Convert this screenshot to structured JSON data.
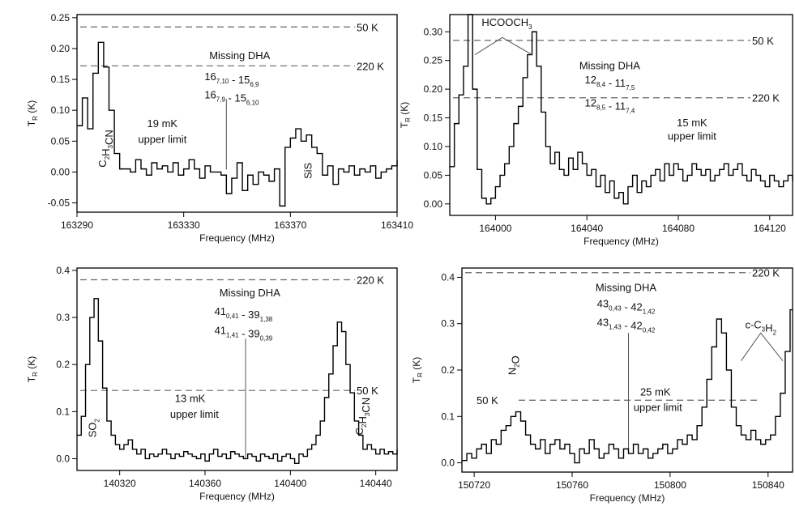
{
  "figure_axis_labels": {
    "x": "Frequency (MHz)",
    "y_prefix": "T",
    "y_sub": "R",
    "y_suffix": " (K)"
  },
  "chart_data": [
    {
      "type": "line",
      "panel": "top-left",
      "xlabel": "Frequency (MHz)",
      "ylabel": "T_R (K)",
      "xlim": [
        163290,
        163410
      ],
      "ylim": [
        -0.065,
        0.255
      ],
      "xticks": [
        163290,
        163330,
        163370,
        163410
      ],
      "yticks": [
        -0.05,
        0.0,
        0.05,
        0.1,
        0.15,
        0.2,
        0.25
      ],
      "ytick_labels": [
        "-0.05",
        "0.00",
        "0.05",
        "0.10",
        "0.15",
        "0.20",
        "0.25"
      ],
      "reference_lines": [
        {
          "label": "50 K",
          "y": 0.235
        },
        {
          "label": "220 K",
          "y": 0.172
        }
      ],
      "annotations": [
        {
          "text": "Missing DHA",
          "x": 163351,
          "y": 0.183
        },
        {
          "parts": [
            [
              "16",
              "7,10"
            ],
            [
              " - 15",
              "6,9"
            ]
          ],
          "x": 163348,
          "y": 0.149
        },
        {
          "parts": [
            [
              "16",
              "7,9"
            ],
            [
              " - 15",
              "6,10"
            ]
          ],
          "x": 163348,
          "y": 0.119
        },
        {
          "text": "19 mK",
          "x": 163322,
          "y": 0.073
        },
        {
          "text": "upper limit",
          "x": 163322,
          "y": 0.047
        },
        {
          "parts": [
            [
              "C",
              "2"
            ],
            [
              "H",
              "3"
            ],
            [
              "CN",
              ""
            ]
          ],
          "x": 163301,
          "y": 0.038,
          "rotate": -90
        },
        {
          "text": "SiS",
          "x": 163378,
          "y": 0.002,
          "rotate": -90
        }
      ],
      "marker_lines": [
        {
          "x": 163346,
          "y_from": 0.118,
          "y_to": 0.004
        }
      ],
      "x": [
        163290,
        163292,
        163294,
        163296,
        163298,
        163300,
        163302,
        163304,
        163306,
        163308,
        163310,
        163312,
        163314,
        163316,
        163318,
        163320,
        163322,
        163324,
        163326,
        163328,
        163330,
        163332,
        163334,
        163336,
        163338,
        163340,
        163342,
        163344,
        163346,
        163348,
        163350,
        163352,
        163354,
        163356,
        163358,
        163360,
        163362,
        163364,
        163366,
        163368,
        163370,
        163372,
        163374,
        163376,
        163378,
        163380,
        163382,
        163384,
        163386,
        163388,
        163390,
        163392,
        163394,
        163396,
        163398,
        163400,
        163402,
        163404,
        163406,
        163408,
        163410
      ],
      "y": [
        0.075,
        0.12,
        0.07,
        0.16,
        0.21,
        0.17,
        0.1,
        0.03,
        0.005,
        0.005,
        0.0,
        0.02,
        0.005,
        -0.005,
        0.015,
        0.005,
        0.01,
        0.0,
        0.015,
        -0.005,
        0.005,
        0.02,
        0.005,
        -0.01,
        0.01,
        0.0,
        0.0,
        -0.005,
        -0.035,
        -0.01,
        0.015,
        -0.03,
        -0.005,
        -0.02,
        0.0,
        -0.005,
        -0.015,
        0.005,
        -0.055,
        0.04,
        0.055,
        0.07,
        0.05,
        0.06,
        0.04,
        0.03,
        -0.005,
        0.01,
        -0.02,
        0.005,
        0.0,
        0.01,
        -0.005,
        0.005,
        0.0,
        0.01,
        -0.01,
        0.0,
        0.005,
        0.01,
        0.02
      ]
    },
    {
      "type": "line",
      "panel": "top-right",
      "xlabel": "Frequency (MHz)",
      "ylabel": "T_R (K)",
      "xlim": [
        163980,
        164130
      ],
      "ylim": [
        -0.02,
        0.33
      ],
      "xticks": [
        164000,
        164040,
        164080,
        164120
      ],
      "yticks": [
        0.0,
        0.05,
        0.1,
        0.15,
        0.2,
        0.25,
        0.3
      ],
      "ytick_labels": [
        "0.00",
        "0.05",
        "0.10",
        "0.15",
        "0.20",
        "0.25",
        "0.30"
      ],
      "reference_lines": [
        {
          "label": "50 K",
          "y": 0.285
        },
        {
          "label": "220 K",
          "y": 0.185
        }
      ],
      "annotations": [
        {
          "parts": [
            [
              "HCOOCH",
              ""
            ],
            [
              "",
              "3"
            ]
          ],
          "x": 164005,
          "y": 0.31
        },
        {
          "text": "Missing DHA",
          "x": 164050,
          "y": 0.235
        },
        {
          "parts": [
            [
              "12",
              "8,4"
            ],
            [
              " - 11",
              "7,5"
            ]
          ],
          "x": 164050,
          "y": 0.21
        },
        {
          "parts": [
            [
              "12",
              "8,5"
            ],
            [
              " - 11",
              "7,4"
            ]
          ],
          "x": 164050,
          "y": 0.17
        },
        {
          "text": "15 mK",
          "x": 164086,
          "y": 0.135
        },
        {
          "text": "upper limit",
          "x": 164086,
          "y": 0.112
        }
      ],
      "marker_lines": [],
      "x": [
        163980,
        163982,
        163984,
        163986,
        163988,
        163990,
        163992,
        163994,
        163996,
        163998,
        164000,
        164002,
        164004,
        164006,
        164008,
        164010,
        164012,
        164014,
        164016,
        164018,
        164020,
        164022,
        164024,
        164026,
        164028,
        164030,
        164032,
        164034,
        164036,
        164038,
        164040,
        164042,
        164044,
        164046,
        164048,
        164050,
        164052,
        164054,
        164056,
        164058,
        164060,
        164062,
        164064,
        164066,
        164068,
        164070,
        164072,
        164074,
        164076,
        164078,
        164080,
        164082,
        164084,
        164086,
        164088,
        164090,
        164092,
        164094,
        164096,
        164098,
        164100,
        164102,
        164104,
        164106,
        164108,
        164110,
        164112,
        164114,
        164116,
        164118,
        164120,
        164122,
        164124,
        164126,
        164128,
        164130
      ],
      "y": [
        0.065,
        0.14,
        0.19,
        0.24,
        0.33,
        0.2,
        0.06,
        0.01,
        0.0,
        0.01,
        0.03,
        0.05,
        0.07,
        0.1,
        0.14,
        0.17,
        0.22,
        0.26,
        0.3,
        0.24,
        0.16,
        0.1,
        0.07,
        0.09,
        0.06,
        0.05,
        0.08,
        0.06,
        0.09,
        0.07,
        0.05,
        0.06,
        0.03,
        0.05,
        0.02,
        0.04,
        0.01,
        0.02,
        0.0,
        0.03,
        0.05,
        0.02,
        0.04,
        0.03,
        0.05,
        0.06,
        0.04,
        0.07,
        0.05,
        0.07,
        0.06,
        0.04,
        0.05,
        0.07,
        0.06,
        0.05,
        0.06,
        0.04,
        0.05,
        0.06,
        0.07,
        0.05,
        0.06,
        0.07,
        0.05,
        0.04,
        0.06,
        0.05,
        0.04,
        0.03,
        0.05,
        0.04,
        0.03,
        0.04,
        0.05,
        0.04
      ]
    },
    {
      "type": "line",
      "panel": "bottom-left",
      "xlabel": "Frequency (MHz)",
      "ylabel": "T_R (K)",
      "xlim": [
        140300,
        140450
      ],
      "ylim": [
        -0.025,
        0.405
      ],
      "xticks": [
        140320,
        140360,
        140400,
        140440
      ],
      "yticks": [
        0.0,
        0.1,
        0.2,
        0.3,
        0.4
      ],
      "ytick_labels": [
        "0.0",
        "0.1",
        "0.2",
        "0.3",
        "0.4"
      ],
      "reference_lines": [
        {
          "label": "220 K",
          "y": 0.38
        },
        {
          "label": "50 K",
          "y": 0.145
        }
      ],
      "annotations": [
        {
          "text": "Missing DHA",
          "x": 140381,
          "y": 0.345
        },
        {
          "parts": [
            [
              "41",
              "0,41"
            ],
            [
              " - 39",
              "1,38"
            ]
          ],
          "x": 140378,
          "y": 0.305
        },
        {
          "parts": [
            [
              "41",
              "1,41"
            ],
            [
              " - 39",
              "0,39"
            ]
          ],
          "x": 140378,
          "y": 0.265
        },
        {
          "text": "13 mK",
          "x": 140353,
          "y": 0.12
        },
        {
          "text": "upper limit",
          "x": 140355,
          "y": 0.087
        },
        {
          "parts": [
            [
              "SO",
              "2"
            ]
          ],
          "x": 140309,
          "y": 0.065,
          "rotate": -90
        },
        {
          "parts": [
            [
              "C",
              "2"
            ],
            [
              "H",
              "3"
            ],
            [
              "CN",
              ""
            ]
          ],
          "x": 140434,
          "y": 0.09,
          "rotate": -90
        }
      ],
      "marker_lines": [
        {
          "x": 140379,
          "y_from": 0.255,
          "y_to": 0.002
        }
      ],
      "x": [
        140300,
        140302,
        140304,
        140306,
        140308,
        140310,
        140312,
        140314,
        140316,
        140318,
        140320,
        140322,
        140324,
        140326,
        140328,
        140330,
        140332,
        140334,
        140336,
        140338,
        140340,
        140342,
        140344,
        140346,
        140348,
        140350,
        140352,
        140354,
        140356,
        140358,
        140360,
        140362,
        140364,
        140366,
        140368,
        140370,
        140372,
        140374,
        140376,
        140378,
        140380,
        140382,
        140384,
        140386,
        140388,
        140390,
        140392,
        140394,
        140396,
        140398,
        140400,
        140402,
        140404,
        140406,
        140408,
        140410,
        140412,
        140414,
        140416,
        140418,
        140420,
        140422,
        140424,
        140426,
        140428,
        140430,
        140432,
        140434,
        140436,
        140438,
        140440,
        140442,
        140444,
        140446,
        140448,
        140450
      ],
      "y": [
        0.05,
        0.09,
        0.2,
        0.3,
        0.34,
        0.25,
        0.15,
        0.08,
        0.05,
        0.03,
        0.02,
        0.03,
        0.04,
        0.02,
        0.01,
        0.02,
        0.0,
        0.01,
        0.005,
        0.01,
        0.02,
        0.01,
        0.0,
        0.01,
        0.005,
        0.015,
        0.01,
        0.005,
        0.0,
        0.01,
        -0.005,
        0.01,
        0.02,
        0.005,
        0.01,
        0.0,
        0.015,
        0.01,
        0.005,
        0.0,
        0.01,
        0.005,
        -0.005,
        0.01,
        0.005,
        0.0,
        0.01,
        -0.005,
        0.005,
        0.01,
        0.0,
        -0.01,
        0.01,
        0.005,
        0.02,
        0.03,
        0.05,
        0.08,
        0.13,
        0.18,
        0.24,
        0.29,
        0.27,
        0.2,
        0.14,
        0.08,
        0.05,
        0.02,
        0.03,
        0.02,
        0.01,
        0.02,
        0.01,
        0.015,
        0.01,
        0.02
      ]
    },
    {
      "type": "line",
      "panel": "bottom-right",
      "xlabel": "Frequency (MHz)",
      "ylabel": "T_R (K)",
      "xlim": [
        150715,
        150850
      ],
      "ylim": [
        -0.02,
        0.42
      ],
      "xticks": [
        150720,
        150760,
        150800,
        150840
      ],
      "yticks": [
        0.0,
        0.1,
        0.2,
        0.3,
        0.4
      ],
      "ytick_labels": [
        "0.0",
        "0.1",
        "0.2",
        "0.3",
        "0.4"
      ],
      "reference_lines": [
        {
          "label": "220 K",
          "y": 0.41
        },
        {
          "label": "50 K",
          "y": 0.135
        }
      ],
      "annotations": [
        {
          "text": "Missing DHA",
          "x": 150782,
          "y": 0.37
        },
        {
          "parts": [
            [
              "43",
              "0,43"
            ],
            [
              " - 42",
              "1,42"
            ]
          ],
          "x": 150782,
          "y": 0.335
        },
        {
          "parts": [
            [
              "43",
              "1,43"
            ],
            [
              " - 42",
              "0,42"
            ]
          ],
          "x": 150782,
          "y": 0.295
        },
        {
          "text": "25 mK",
          "x": 150794,
          "y": 0.145
        },
        {
          "text": "upper limit",
          "x": 150795,
          "y": 0.112
        },
        {
          "parts": [
            [
              "N",
              "2"
            ],
            [
              "O",
              ""
            ]
          ],
          "x": 150737,
          "y": 0.21,
          "rotate": -90
        },
        {
          "parts": [
            [
              "c-C",
              "3"
            ],
            [
              "H",
              "2"
            ]
          ],
          "x": 150837,
          "y": 0.29
        }
      ],
      "marker_lines": [
        {
          "x": 150783,
          "y_from": 0.28,
          "y_to": 0.02
        }
      ],
      "x": [
        150715,
        150717,
        150719,
        150721,
        150723,
        150725,
        150727,
        150729,
        150731,
        150733,
        150735,
        150737,
        150739,
        150741,
        150743,
        150745,
        150747,
        150749,
        150751,
        150753,
        150755,
        150757,
        150759,
        150761,
        150763,
        150765,
        150767,
        150769,
        150771,
        150773,
        150775,
        150777,
        150779,
        150781,
        150783,
        150785,
        150787,
        150789,
        150791,
        150793,
        150795,
        150797,
        150799,
        150801,
        150803,
        150805,
        150807,
        150809,
        150811,
        150813,
        150815,
        150817,
        150819,
        150821,
        150823,
        150825,
        150827,
        150829,
        150831,
        150833,
        150835,
        150837,
        150839,
        150841,
        150843,
        150845,
        150847,
        150849
      ],
      "y": [
        0.005,
        0.02,
        0.01,
        0.03,
        0.04,
        0.02,
        0.05,
        0.04,
        0.07,
        0.08,
        0.1,
        0.11,
        0.09,
        0.06,
        0.04,
        0.03,
        0.05,
        0.02,
        0.04,
        0.05,
        0.03,
        0.04,
        0.02,
        0.0,
        0.03,
        0.02,
        0.05,
        0.03,
        0.01,
        0.02,
        0.04,
        0.03,
        0.01,
        0.03,
        0.02,
        0.04,
        0.02,
        0.03,
        0.01,
        0.02,
        0.03,
        0.04,
        0.02,
        0.03,
        0.05,
        0.04,
        0.06,
        0.05,
        0.08,
        0.12,
        0.18,
        0.25,
        0.31,
        0.28,
        0.2,
        0.12,
        0.08,
        0.06,
        0.05,
        0.07,
        0.05,
        0.04,
        0.05,
        0.06,
        0.1,
        0.15,
        0.24,
        0.33
      ]
    }
  ]
}
